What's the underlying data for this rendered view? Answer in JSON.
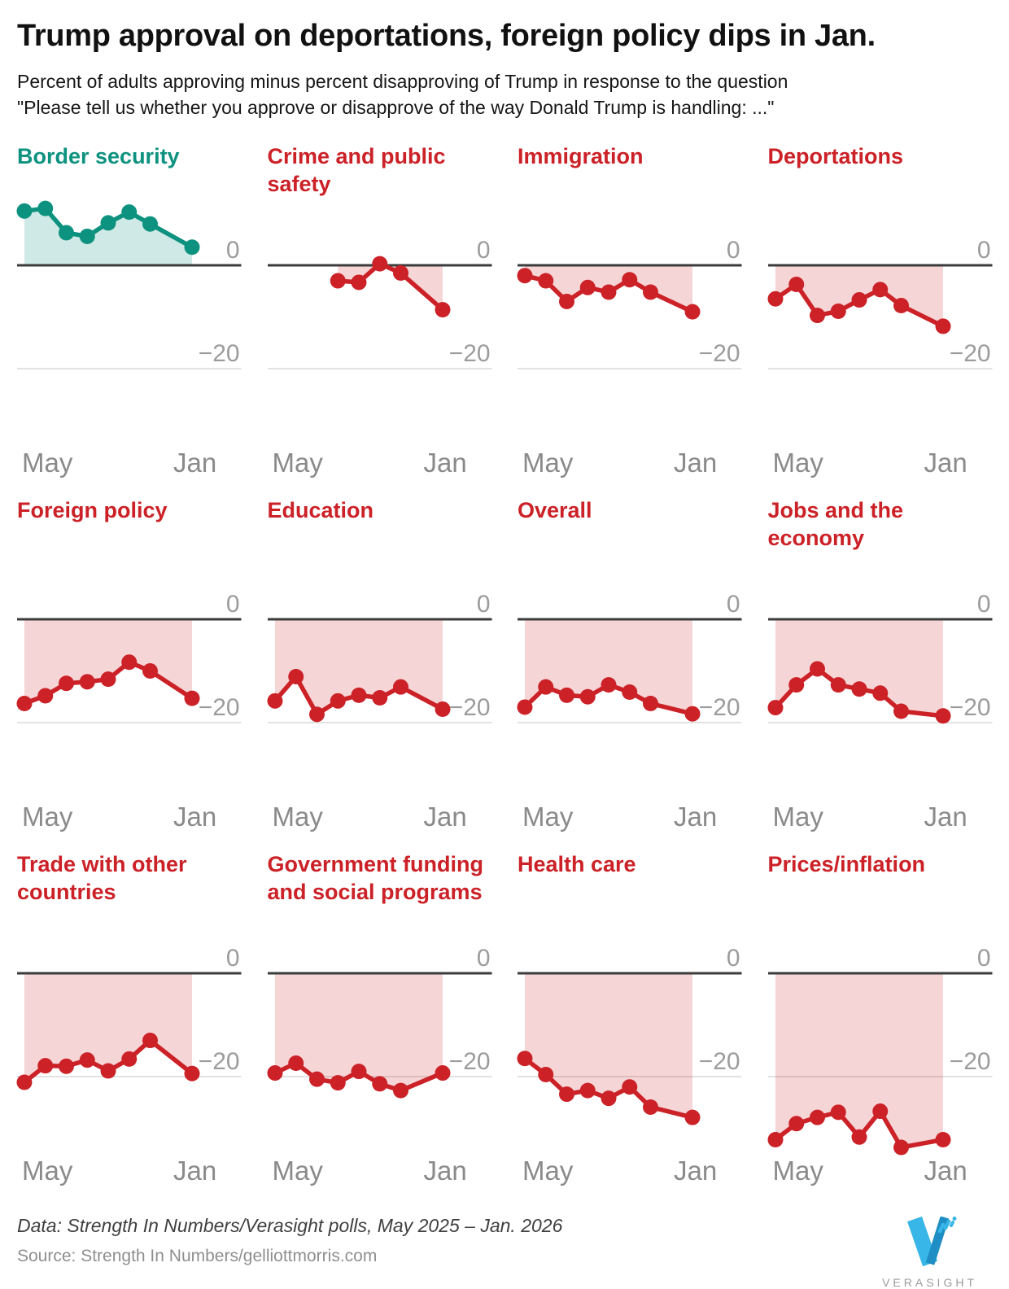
{
  "header": {
    "title": "Trump approval on deportations, foreign policy dips in Jan.",
    "subtitle_line1": "Percent of adults approving minus percent disapproving of Trump in response to the question",
    "subtitle_line2": "\"Please tell us whether you approve or disapprove of the way Donald Trump is handling: ...\""
  },
  "colors": {
    "red": "#cb2127",
    "red_fill": "rgba(203,33,39,0.19)",
    "teal": "#0e9280",
    "teal_fill": "rgba(14,146,128,0.2)",
    "axis": "#3b3b3b",
    "gridline": "#d8d8d8",
    "tick_label": "#9c9c9c",
    "x_label": "#8a8a8a",
    "logo_blue": "#38b6e8",
    "logo_blue_dark": "#1f8ec4",
    "logo_text": "#9b9b9b"
  },
  "chart_config": {
    "x_labels": [
      "May",
      "Jan"
    ],
    "x_range_note": "May 2025 to Jan 2026, 9 monthly poll slots, slot 7 (Dec) unobserved",
    "slot_count": 9,
    "yticks": [
      {
        "value": 0,
        "label": "0"
      },
      {
        "value": -20,
        "label": "−20"
      }
    ],
    "ylim": [
      -35,
      12
    ],
    "grid": "horizontal-only",
    "legend": "none"
  },
  "chart_data": [
    {
      "type": "line",
      "title": "Border security",
      "color": "teal",
      "x_slots": [
        0,
        1,
        2,
        3,
        4,
        5,
        6,
        8
      ],
      "values": [
        10.5,
        11,
        6.3,
        5.6,
        8.2,
        10.3,
        8,
        3.5
      ]
    },
    {
      "type": "line",
      "title": "Crime and public safety",
      "color": "red",
      "x_slots": [
        3,
        4,
        5,
        6,
        8
      ],
      "values": [
        -3,
        -3.3,
        0.3,
        -1.5,
        -8.6
      ]
    },
    {
      "type": "line",
      "title": "Immigration",
      "color": "red",
      "x_slots": [
        0,
        1,
        2,
        3,
        4,
        5,
        6,
        8
      ],
      "values": [
        -2,
        -3,
        -7,
        -4.3,
        -5.2,
        -2.8,
        -5.2,
        -9
      ]
    },
    {
      "type": "line",
      "title": "Deportations",
      "color": "red",
      "x_slots": [
        0,
        1,
        2,
        3,
        4,
        5,
        6,
        8
      ],
      "values": [
        -6.5,
        -3.7,
        -9.7,
        -8.9,
        -6.7,
        -4.7,
        -7.8,
        -11.8
      ]
    },
    {
      "type": "line",
      "title": "Foreign policy",
      "color": "red",
      "x_slots": [
        0,
        1,
        2,
        3,
        4,
        5,
        6,
        8
      ],
      "values": [
        -16.3,
        -14.8,
        -12.4,
        -12.1,
        -11.6,
        -8.3,
        -10,
        -15.3
      ]
    },
    {
      "type": "line",
      "title": "Education",
      "color": "red",
      "x_slots": [
        0,
        1,
        2,
        3,
        4,
        5,
        6,
        8
      ],
      "values": [
        -15.8,
        -11.1,
        -18.4,
        -15.8,
        -14.7,
        -15.2,
        -13.1,
        -17.4
      ]
    },
    {
      "type": "line",
      "title": "Overall",
      "color": "red",
      "x_slots": [
        0,
        1,
        2,
        3,
        4,
        5,
        6,
        8
      ],
      "values": [
        -17,
        -13.1,
        -14.7,
        -15,
        -12.7,
        -14.1,
        -16.3,
        -18.3
      ]
    },
    {
      "type": "line",
      "title": "Jobs and the economy",
      "color": "red",
      "x_slots": [
        0,
        1,
        2,
        3,
        4,
        5,
        6,
        8
      ],
      "values": [
        -17.1,
        -12.7,
        -9.6,
        -12.7,
        -13.5,
        -14.3,
        -17.8,
        -18.7
      ]
    },
    {
      "type": "line",
      "title": "Trade with other countries",
      "color": "red",
      "x_slots": [
        0,
        1,
        2,
        3,
        4,
        5,
        6,
        8
      ],
      "values": [
        -21.1,
        -17.9,
        -18,
        -16.8,
        -18.9,
        -16.6,
        -13,
        -19.4
      ]
    },
    {
      "type": "line",
      "title": "Government funding and social programs",
      "color": "red",
      "x_slots": [
        0,
        1,
        2,
        3,
        4,
        5,
        6,
        8
      ],
      "values": [
        -19.3,
        -17.4,
        -20.5,
        -21.2,
        -19,
        -21.4,
        -22.7,
        -19.3
      ]
    },
    {
      "type": "line",
      "title": "Health care",
      "color": "red",
      "x_slots": [
        0,
        1,
        2,
        3,
        4,
        5,
        6,
        8
      ],
      "values": [
        -16.5,
        -19.6,
        -23.4,
        -22.7,
        -24.2,
        -22,
        -25.9,
        -27.9
      ]
    },
    {
      "type": "line",
      "title": "Prices/inflation",
      "color": "red",
      "x_slots": [
        0,
        1,
        2,
        3,
        4,
        5,
        6,
        8
      ],
      "values": [
        -32.2,
        -29.1,
        -27.9,
        -26.9,
        -31.7,
        -26.7,
        -33.7,
        -32.2
      ]
    }
  ],
  "footer": {
    "data_line": "Data: Strength In Numbers/Verasight polls, May 2025 – Jan. 2026",
    "source_line": "Source: Strength In Numbers/gelliottmorris.com",
    "logo_text": "VERASIGHT"
  }
}
